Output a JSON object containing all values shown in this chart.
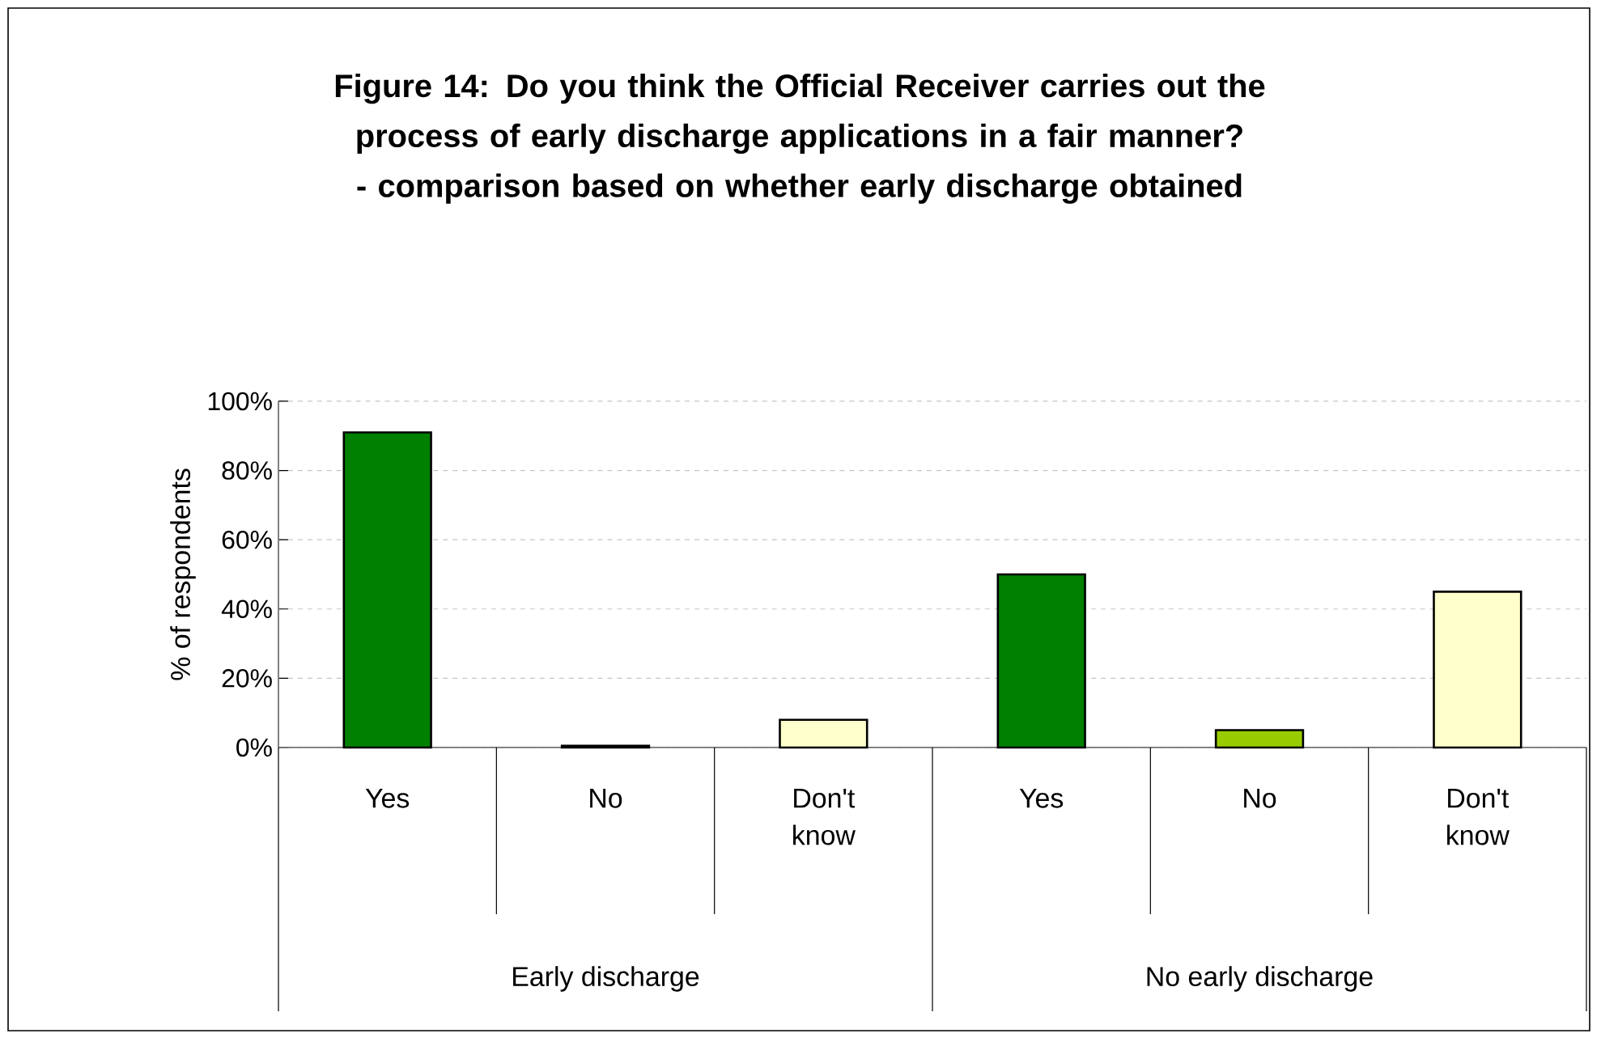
{
  "chart_data": {
    "type": "bar",
    "title": "Figure 14: Do you think the Official Receiver carries out the process of early discharge applications in a fair manner? - comparison based on whether early discharge obtained",
    "ylabel": "% of respondents",
    "categories": [
      "Yes",
      "No",
      "Don't know",
      "Yes",
      "No",
      "Don't know"
    ],
    "values": [
      91,
      0.5,
      8,
      50,
      5,
      45
    ],
    "colors": [
      "#008000",
      "#99cc00",
      "#ffffcc",
      "#008000",
      "#99cc00",
      "#ffffcc"
    ],
    "annotations": [
      "Early discharge",
      "No early discharge"
    ],
    "ylim": [
      0,
      100
    ],
    "yticks": [
      {
        "value": 0,
        "label": "0%"
      },
      {
        "value": 20,
        "label": "20%"
      },
      {
        "value": 40,
        "label": "40%"
      },
      {
        "value": 60,
        "label": "60%"
      },
      {
        "value": 80,
        "label": "80%"
      },
      {
        "value": 100,
        "label": "100%"
      }
    ],
    "grid": "y"
  }
}
